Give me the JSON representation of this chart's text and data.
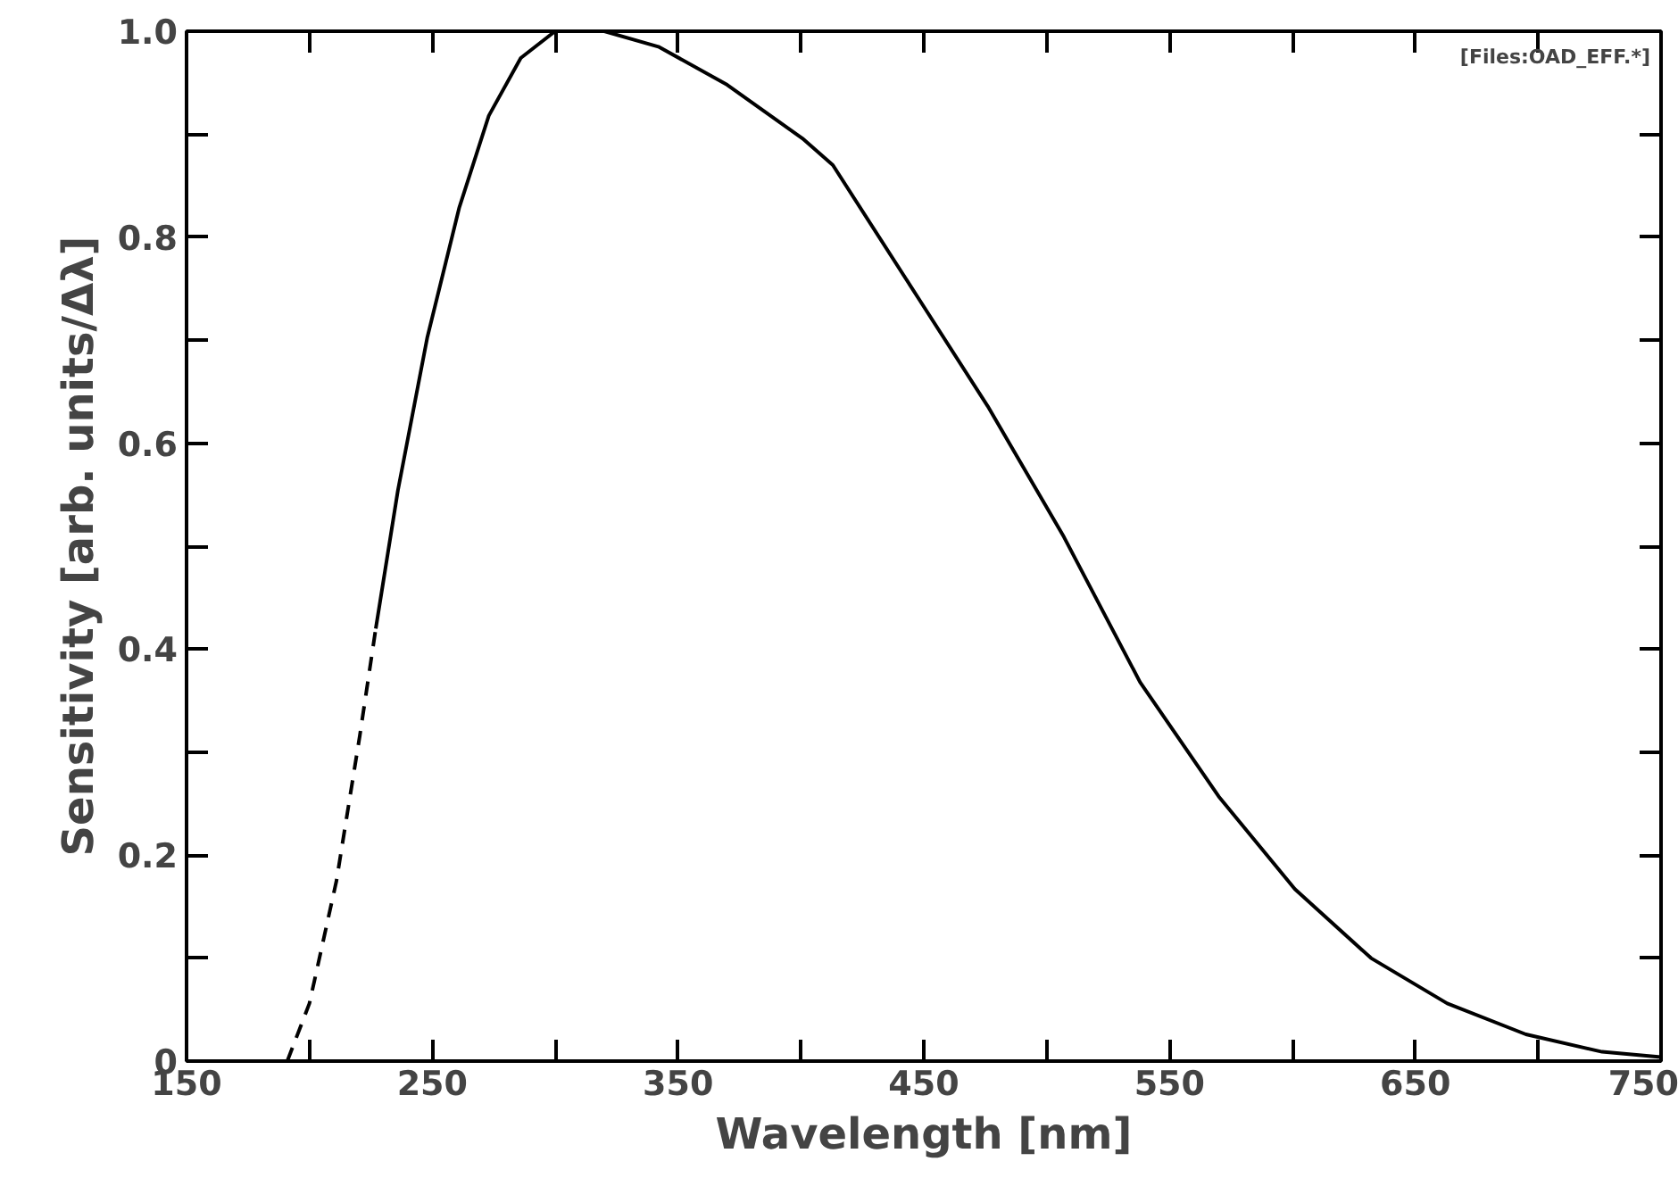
{
  "chart_data": {
    "type": "line",
    "xlabel": "Wavelength [nm]",
    "ylabel": "Sensitivity [arb. units/Δλ]",
    "annotations": [
      "[Files:OAD_EFF.*]"
    ],
    "xlim": [
      150,
      750
    ],
    "ylim": [
      0,
      1.0
    ],
    "xticks": [
      150,
      {
        "value": 200,
        "label": null
      },
      250,
      {
        "value": 300,
        "label": null
      },
      350,
      {
        "value": 400,
        "label": null
      },
      450,
      {
        "value": 500,
        "label": null
      },
      550,
      {
        "value": 600,
        "label": null
      },
      650,
      {
        "value": 700,
        "label": null
      },
      750
    ],
    "yticks": [
      0,
      {
        "value": 0.1,
        "label": null
      },
      0.2,
      {
        "value": 0.3,
        "label": null
      },
      0.4,
      {
        "value": 0.5,
        "label": null
      },
      0.6,
      {
        "value": 0.7,
        "label": null
      },
      0.8,
      {
        "value": 0.9,
        "label": null
      },
      {
        "value": 1.0,
        "label": "1.0"
      }
    ],
    "grid": false,
    "marker": "none",
    "series": [
      {
        "color": "#000000",
        "line_style": "dashed",
        "x": [
          191,
          200,
          211,
          220.5,
          227
        ],
        "values": [
          0,
          0.056,
          0.175,
          0.316,
          0.42
        ]
      },
      {
        "color": "#000000",
        "line_style": "solid",
        "x": [
          227,
          236,
          248,
          261,
          273,
          286,
          300,
          320,
          342,
          370,
          400.6,
          413,
          448,
          476,
          507,
          538,
          570,
          601,
          632,
          663,
          695,
          726,
          750
        ],
        "values": [
          0.42,
          0.554,
          0.703,
          0.829,
          0.918,
          0.974,
          1.0,
          1.0,
          0.985,
          0.948,
          0.896,
          0.87,
          0.74,
          0.636,
          0.509,
          0.368,
          0.257,
          0.167,
          0.1,
          0.056,
          0.026,
          0.009,
          0.004
        ]
      }
    ]
  }
}
